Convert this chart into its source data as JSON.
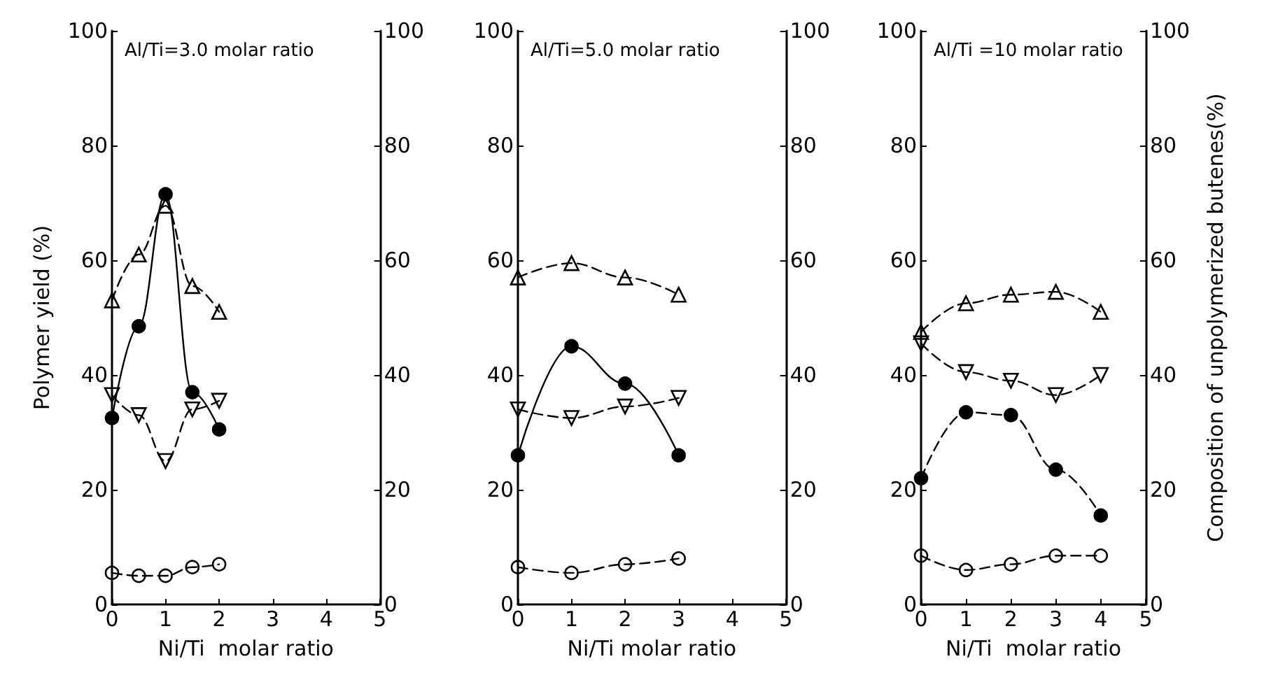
{
  "chart_data": [
    {
      "type": "line",
      "annotations": [
        "Al/Ti=3.0 molar ratio"
      ],
      "xlabel": "Ni/Ti  molar ratio",
      "ylabel": "Polymer yield (%)",
      "x": [
        0,
        0.5,
        1,
        1.5,
        2
      ],
      "xlim": [
        0,
        5
      ],
      "xticks": [
        0,
        1,
        2,
        3,
        4,
        5
      ],
      "ylim": [
        0,
        100
      ],
      "yticks": [
        0,
        20,
        40,
        60,
        80,
        100
      ],
      "y2lim": [
        0,
        100
      ],
      "y2ticks": [
        0,
        20,
        40,
        60,
        80,
        100
      ],
      "grid": false,
      "series": [
        {
          "color": "#000000",
          "marker": "circle",
          "line_style": "solid",
          "values": [
            32.5,
            48.5,
            71.5,
            37,
            30.5
          ]
        },
        {
          "color": "#000000",
          "marker": "triangle",
          "line_style": "dashed",
          "axis": "y2",
          "values": [
            53,
            61,
            69.5,
            55.5,
            51
          ]
        },
        {
          "color": "#000000",
          "marker": "triangle-down",
          "line_style": "dashed",
          "axis": "y2",
          "values": [
            36.5,
            33,
            25,
            34,
            35.5
          ]
        },
        {
          "color": "#000000",
          "marker": "circle",
          "line_style": "dashed",
          "axis": "y2",
          "values": [
            5.5,
            5,
            5,
            6.5,
            7
          ]
        }
      ]
    },
    {
      "type": "line",
      "annotations": [
        "Al/Ti=5.0 molar ratio"
      ],
      "xlabel": "Ni/Ti molar ratio",
      "x": [
        0,
        1,
        2,
        3
      ],
      "xlim": [
        0,
        5
      ],
      "xticks": [
        0,
        1,
        2,
        3,
        4,
        5
      ],
      "ylim": [
        0,
        100
      ],
      "yticks": [
        0,
        20,
        40,
        60,
        80,
        100
      ],
      "y2lim": [
        0,
        100
      ],
      "y2ticks": [
        0,
        20,
        40,
        60,
        80,
        100
      ],
      "grid": false,
      "series": [
        {
          "color": "#000000",
          "marker": "circle",
          "line_style": "solid",
          "values": [
            26,
            45,
            38.5,
            26
          ]
        },
        {
          "color": "#000000",
          "marker": "triangle",
          "line_style": "dashed",
          "axis": "y2",
          "values": [
            57,
            59.5,
            57,
            54
          ]
        },
        {
          "color": "#000000",
          "marker": "triangle-down",
          "line_style": "dashed",
          "axis": "y2",
          "values": [
            34,
            32.5,
            34.5,
            36
          ]
        },
        {
          "color": "#000000",
          "marker": "circle",
          "line_style": "dashed",
          "axis": "y2",
          "values": [
            6.5,
            5.5,
            7,
            8
          ]
        }
      ]
    },
    {
      "type": "line",
      "annotations": [
        "Al/Ti =10 molar ratio"
      ],
      "xlabel": "Ni/Ti  molar ratio",
      "y2label": "Composition of unpolymerized butenes(%)",
      "x": [
        0,
        1,
        2,
        3,
        4
      ],
      "xlim": [
        0,
        5
      ],
      "xticks": [
        0,
        1,
        2,
        3,
        4,
        5
      ],
      "ylim": [
        0,
        100
      ],
      "yticks": [
        0,
        20,
        40,
        60,
        80,
        100
      ],
      "y2lim": [
        0,
        100
      ],
      "y2ticks": [
        0,
        20,
        40,
        60,
        80,
        100
      ],
      "grid": false,
      "series": [
        {
          "color": "#000000",
          "marker": "circle",
          "line_style": "dashed",
          "values": [
            22,
            33.5,
            33,
            23.5,
            15.5
          ]
        },
        {
          "color": "#000000",
          "marker": "triangle",
          "line_style": "dashed",
          "axis": "y2",
          "values": [
            47.5,
            52.5,
            54,
            54.5,
            51
          ]
        },
        {
          "color": "#000000",
          "marker": "triangle-down",
          "line_style": "dashed",
          "axis": "y2",
          "values": [
            45.5,
            40.5,
            39,
            36.5,
            40
          ]
        },
        {
          "color": "#000000",
          "marker": "circle",
          "line_style": "dashed",
          "axis": "y2",
          "values": [
            8.5,
            6,
            7,
            8.5,
            8.5
          ]
        }
      ]
    }
  ]
}
